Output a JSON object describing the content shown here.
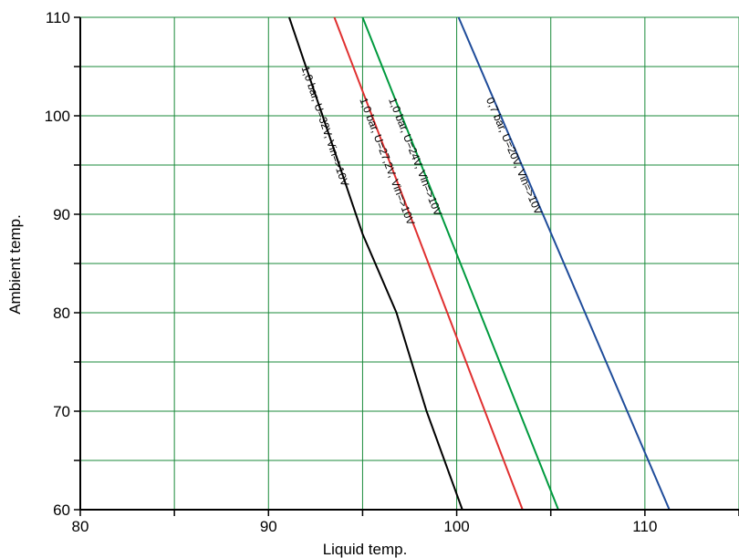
{
  "chart_data": {
    "type": "line",
    "title": "",
    "xlabel": "Liquid temp.",
    "ylabel": "Ambient temp.",
    "xlim": [
      80,
      115
    ],
    "ylim": [
      60,
      110
    ],
    "x_ticks": [
      80,
      90,
      100,
      110
    ],
    "y_ticks": [
      60,
      70,
      80,
      90,
      100,
      110
    ],
    "grid": true,
    "grid_color": "#1a8a3a",
    "series": [
      {
        "name": "1,0 bar, U=32V, Vin=>10V",
        "color": "#000000",
        "points": [
          [
            91.1,
            110
          ],
          [
            95.0,
            88
          ],
          [
            96.8,
            80
          ],
          [
            98.4,
            70
          ],
          [
            100.3,
            60
          ]
        ]
      },
      {
        "name": "1,0 bar, U=27,2V, Vin=>10V",
        "color": "#e03030",
        "points": [
          [
            93.5,
            110
          ],
          [
            103.5,
            60
          ]
        ]
      },
      {
        "name": "1,0 bar, U=24V, Vin=>10V",
        "color": "#009a3e",
        "points": [
          [
            95.0,
            110
          ],
          [
            105.4,
            60
          ]
        ]
      },
      {
        "name": "0,7 bar, U=20V, Vin=>10V",
        "color": "#1f4c9a",
        "points": [
          [
            100.1,
            110
          ],
          [
            111.3,
            60
          ]
        ]
      }
    ]
  }
}
